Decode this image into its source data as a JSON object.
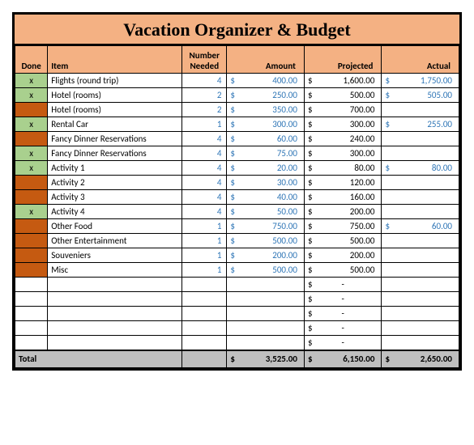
{
  "title": "Vacation Organizer & Budget",
  "headers": {
    "done": "Done",
    "item": "Item",
    "number": "Number Needed",
    "amount": "Amount",
    "projected": "Projected",
    "actual": "Actual"
  },
  "colors": {
    "header_bg": "#f4b183",
    "done_green": "#a9d08e",
    "done_orange": "#c55a11",
    "input_text": "#2e75b6",
    "total_bg": "#bfbfbf",
    "border": "#000000"
  },
  "currency": "$",
  "rows": [
    {
      "done": "x",
      "done_color": "green",
      "item": "Flights (round trip)",
      "number": "4",
      "amount": "400.00",
      "projected": "1,600.00",
      "actual": "1,750.00"
    },
    {
      "done": "x",
      "done_color": "green",
      "item": "Hotel (rooms)",
      "number": "2",
      "amount": "250.00",
      "projected": "500.00",
      "actual": "505.00"
    },
    {
      "done": "",
      "done_color": "orange",
      "item": "Hotel (rooms)",
      "number": "2",
      "amount": "350.00",
      "projected": "700.00",
      "actual": ""
    },
    {
      "done": "x",
      "done_color": "green",
      "item": "Rental Car",
      "number": "1",
      "amount": "300.00",
      "projected": "300.00",
      "actual": "255.00"
    },
    {
      "done": "",
      "done_color": "orange",
      "item": "Fancy Dinner Reservations",
      "number": "4",
      "amount": "60.00",
      "projected": "240.00",
      "actual": ""
    },
    {
      "done": "x",
      "done_color": "green",
      "item": "Fancy Dinner Reservations",
      "number": "4",
      "amount": "75.00",
      "projected": "300.00",
      "actual": ""
    },
    {
      "done": "x",
      "done_color": "green",
      "item": "Activity 1",
      "number": "4",
      "amount": "20.00",
      "projected": "80.00",
      "actual": "80.00"
    },
    {
      "done": "",
      "done_color": "orange",
      "item": "Activity 2",
      "number": "4",
      "amount": "30.00",
      "projected": "120.00",
      "actual": ""
    },
    {
      "done": "",
      "done_color": "orange",
      "item": "Activity 3",
      "number": "4",
      "amount": "40.00",
      "projected": "160.00",
      "actual": ""
    },
    {
      "done": "x",
      "done_color": "green",
      "item": "Activity 4",
      "number": "4",
      "amount": "50.00",
      "projected": "200.00",
      "actual": ""
    },
    {
      "done": "",
      "done_color": "orange",
      "item": "Other Food",
      "number": "1",
      "amount": "750.00",
      "projected": "750.00",
      "actual": "60.00"
    },
    {
      "done": "",
      "done_color": "orange",
      "item": "Other Entertainment",
      "number": "1",
      "amount": "500.00",
      "projected": "500.00",
      "actual": ""
    },
    {
      "done": "",
      "done_color": "orange",
      "item": "Souveniers",
      "number": "1",
      "amount": "200.00",
      "projected": "200.00",
      "actual": ""
    },
    {
      "done": "",
      "done_color": "orange",
      "item": "Misc",
      "number": "1",
      "amount": "500.00",
      "projected": "500.00",
      "actual": ""
    }
  ],
  "empty_rows": 5,
  "totals": {
    "label": "Total",
    "amount": "3,525.00",
    "projected": "6,150.00",
    "actual": "2,650.00"
  }
}
